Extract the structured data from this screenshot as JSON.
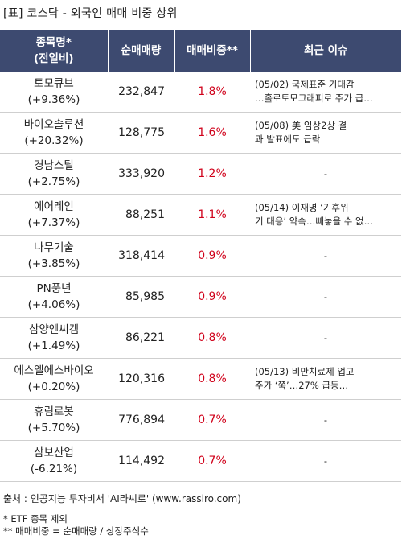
{
  "title": "[표] 코스닥 - 외국인 매매 비중 상위",
  "headers": {
    "name_line1": "종목명*",
    "name_line2": "(전일비)",
    "volume": "순매매량",
    "ratio": "매매비중**",
    "issue": "최근 이슈"
  },
  "rows": [
    {
      "name": "토모큐브",
      "change": "(+9.36%)",
      "volume": "232,847",
      "ratio": "1.8%",
      "issue1": "(05/02) 국제표준 기대감",
      "issue2": "…홀로토모그래피로 주가 급…"
    },
    {
      "name": "바이오솔루션",
      "change": "(+20.32%)",
      "volume": "128,775",
      "ratio": "1.6%",
      "issue1": "(05/08) 美 임상2상 결",
      "issue2": "과 발표에도 급락"
    },
    {
      "name": "경남스틸",
      "change": "(+2.75%)",
      "volume": "333,920",
      "ratio": "1.2%",
      "issue1": "-",
      "issue2": ""
    },
    {
      "name": "에어레인",
      "change": "(+7.37%)",
      "volume": "88,251",
      "ratio": "1.1%",
      "issue1": "(05/14) 이재명 ‘기후위",
      "issue2": "기 대응’ 약속…빼놓을 수 없…"
    },
    {
      "name": "나무기술",
      "change": "(+3.85%)",
      "volume": "318,414",
      "ratio": "0.9%",
      "issue1": "-",
      "issue2": ""
    },
    {
      "name": "PN풍년",
      "change": "(+4.06%)",
      "volume": "85,985",
      "ratio": "0.9%",
      "issue1": "-",
      "issue2": ""
    },
    {
      "name": "삼양엔씨켐",
      "change": "(+1.49%)",
      "volume": "86,221",
      "ratio": "0.8%",
      "issue1": "-",
      "issue2": ""
    },
    {
      "name": "에스엘에스바이오",
      "change": "(+0.20%)",
      "volume": "120,316",
      "ratio": "0.8%",
      "issue1": "(05/13) 비만치료제 업고",
      "issue2": "주가 ‘쭉’…27% 급등…"
    },
    {
      "name": "휴림로봇",
      "change": "(+5.70%)",
      "volume": "776,894",
      "ratio": "0.7%",
      "issue1": "-",
      "issue2": ""
    },
    {
      "name": "삼보산업",
      "change": "(-6.21%)",
      "volume": "114,492",
      "ratio": "0.7%",
      "issue1": "-",
      "issue2": ""
    }
  ],
  "source": "출처 : 인공지능 투자비서 'AI라씨로' (www.rassiro.com)",
  "note1": "* ETF 종목 제외",
  "note2": "** 매매비중 = 순매매량 / 상장주식수",
  "colors": {
    "header_bg": "#3d4a70",
    "ratio_text": "#d0021b"
  }
}
